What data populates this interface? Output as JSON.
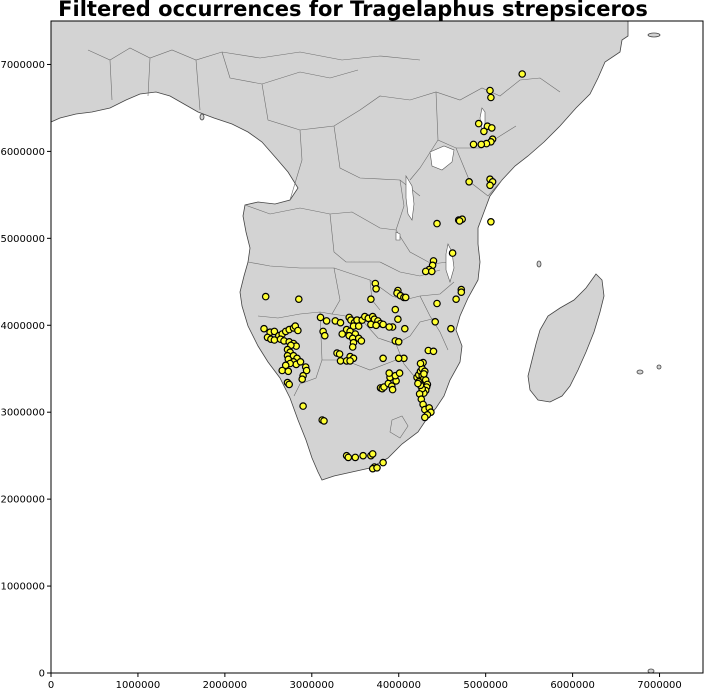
{
  "title": "Filtered occurrences for Tragelaphus strepsiceros",
  "colors": {
    "land": "#d3d3d3",
    "ocean": "#ffffff",
    "marker_fill": "#ffff33",
    "marker_edge": "#000000"
  },
  "chart_data": {
    "type": "scatter",
    "title": "Filtered occurrences for Tragelaphus strepsiceros",
    "xlabel": "",
    "ylabel": "",
    "xlim": [
      0,
      7500000
    ],
    "ylim": [
      0,
      7500000
    ],
    "x_ticks": [
      0,
      1000000,
      2000000,
      3000000,
      4000000,
      5000000,
      6000000,
      7000000
    ],
    "y_ticks": [
      0,
      1000000,
      2000000,
      3000000,
      4000000,
      5000000,
      6000000,
      7000000
    ],
    "x_tick_labels": [
      "0",
      "1000000",
      "2000000",
      "3000000",
      "4000000",
      "5000000",
      "6000000",
      "7000000"
    ],
    "y_tick_labels": [
      "0",
      "1000000",
      "2000000",
      "3000000",
      "4000000",
      "5000000",
      "6000000",
      "7000000"
    ],
    "grid": false,
    "marker": "circle",
    "points": [
      [
        5420000,
        6890000
      ],
      [
        5050000,
        6700000
      ],
      [
        5060000,
        6620000
      ],
      [
        4920000,
        6320000
      ],
      [
        5020000,
        6290000
      ],
      [
        5070000,
        6270000
      ],
      [
        4980000,
        6230000
      ],
      [
        5080000,
        6140000
      ],
      [
        5060000,
        6110000
      ],
      [
        5010000,
        6090000
      ],
      [
        4950000,
        6080000
      ],
      [
        4860000,
        6080000
      ],
      [
        5050000,
        5680000
      ],
      [
        5080000,
        5650000
      ],
      [
        5050000,
        5610000
      ],
      [
        4810000,
        5650000
      ],
      [
        4690000,
        5210000
      ],
      [
        4730000,
        5220000
      ],
      [
        4700000,
        5200000
      ],
      [
        5060000,
        5190000
      ],
      [
        4440000,
        5170000
      ],
      [
        4620000,
        4830000
      ],
      [
        4400000,
        4740000
      ],
      [
        4390000,
        4690000
      ],
      [
        4350000,
        4640000
      ],
      [
        4310000,
        4620000
      ],
      [
        4380000,
        4620000
      ],
      [
        4720000,
        4410000
      ],
      [
        4720000,
        4380000
      ],
      [
        4660000,
        4300000
      ],
      [
        4440000,
        4250000
      ],
      [
        4600000,
        3960000
      ],
      [
        4420000,
        4040000
      ],
      [
        4340000,
        3710000
      ],
      [
        4400000,
        3700000
      ],
      [
        3730000,
        4480000
      ],
      [
        3740000,
        4420000
      ],
      [
        3990000,
        4400000
      ],
      [
        3980000,
        4370000
      ],
      [
        4020000,
        4340000
      ],
      [
        4060000,
        4320000
      ],
      [
        4080000,
        4320000
      ],
      [
        3680000,
        4300000
      ],
      [
        2470000,
        4330000
      ],
      [
        2850000,
        4300000
      ],
      [
        3100000,
        4090000
      ],
      [
        3170000,
        4050000
      ],
      [
        3270000,
        4050000
      ],
      [
        3330000,
        4030000
      ],
      [
        3430000,
        4090000
      ],
      [
        3450000,
        4060000
      ],
      [
        3490000,
        4030000
      ],
      [
        3520000,
        4060000
      ],
      [
        3580000,
        4060000
      ],
      [
        3610000,
        4100000
      ],
      [
        3650000,
        4080000
      ],
      [
        3700000,
        4100000
      ],
      [
        3720000,
        4070000
      ],
      [
        3760000,
        4050000
      ],
      [
        3790000,
        4020000
      ],
      [
        3820000,
        4010000
      ],
      [
        3680000,
        4010000
      ],
      [
        3740000,
        4000000
      ],
      [
        3480000,
        3990000
      ],
      [
        3540000,
        3990000
      ],
      [
        3400000,
        3950000
      ],
      [
        3440000,
        3930000
      ],
      [
        3500000,
        3900000
      ],
      [
        3130000,
        3930000
      ],
      [
        3150000,
        3880000
      ],
      [
        3350000,
        3900000
      ],
      [
        3430000,
        3880000
      ],
      [
        3470000,
        3850000
      ],
      [
        3540000,
        3850000
      ],
      [
        3570000,
        3820000
      ],
      [
        3480000,
        3800000
      ],
      [
        3470000,
        3750000
      ],
      [
        3290000,
        3680000
      ],
      [
        3320000,
        3670000
      ],
      [
        3440000,
        3640000
      ],
      [
        3480000,
        3620000
      ],
      [
        3330000,
        3590000
      ],
      [
        3400000,
        3590000
      ],
      [
        3440000,
        3590000
      ],
      [
        3930000,
        3980000
      ],
      [
        3890000,
        3980000
      ],
      [
        4070000,
        3960000
      ],
      [
        3960000,
        3820000
      ],
      [
        4000000,
        3810000
      ],
      [
        4060000,
        3620000
      ],
      [
        4000000,
        3620000
      ],
      [
        3820000,
        3620000
      ],
      [
        3960000,
        4180000
      ],
      [
        3990000,
        4070000
      ],
      [
        2450000,
        3960000
      ],
      [
        2520000,
        3920000
      ],
      [
        2570000,
        3930000
      ],
      [
        2620000,
        3880000
      ],
      [
        2660000,
        3900000
      ],
      [
        2700000,
        3930000
      ],
      [
        2740000,
        3950000
      ],
      [
        2790000,
        3970000
      ],
      [
        2810000,
        3990000
      ],
      [
        2840000,
        3940000
      ],
      [
        2490000,
        3860000
      ],
      [
        2530000,
        3840000
      ],
      [
        2570000,
        3830000
      ],
      [
        2640000,
        3840000
      ],
      [
        2680000,
        3820000
      ],
      [
        2740000,
        3810000
      ],
      [
        2790000,
        3790000
      ],
      [
        2820000,
        3760000
      ],
      [
        2760000,
        3770000
      ],
      [
        2720000,
        3720000
      ],
      [
        2750000,
        3690000
      ],
      [
        2720000,
        3650000
      ],
      [
        2730000,
        3610000
      ],
      [
        2790000,
        3650000
      ],
      [
        2830000,
        3620000
      ],
      [
        2790000,
        3580000
      ],
      [
        2820000,
        3550000
      ],
      [
        2870000,
        3580000
      ],
      [
        2750000,
        3560000
      ],
      [
        2700000,
        3540000
      ],
      [
        2660000,
        3480000
      ],
      [
        2730000,
        3470000
      ],
      [
        2930000,
        3520000
      ],
      [
        2940000,
        3480000
      ],
      [
        2900000,
        3420000
      ],
      [
        2890000,
        3380000
      ],
      [
        2720000,
        3340000
      ],
      [
        2740000,
        3320000
      ],
      [
        2900000,
        3070000
      ],
      [
        3120000,
        2910000
      ],
      [
        3140000,
        2900000
      ],
      [
        3790000,
        3280000
      ],
      [
        3810000,
        3270000
      ],
      [
        3830000,
        3290000
      ],
      [
        3880000,
        3330000
      ],
      [
        3920000,
        3300000
      ],
      [
        3930000,
        3260000
      ],
      [
        3900000,
        3400000
      ],
      [
        3970000,
        3360000
      ],
      [
        3960000,
        3420000
      ],
      [
        4010000,
        3450000
      ],
      [
        3890000,
        3450000
      ],
      [
        4210000,
        3400000
      ],
      [
        4230000,
        3430000
      ],
      [
        4250000,
        3470000
      ],
      [
        4270000,
        3500000
      ],
      [
        4280000,
        3570000
      ],
      [
        4250000,
        3560000
      ],
      [
        4270000,
        3420000
      ],
      [
        4290000,
        3390000
      ],
      [
        4310000,
        3370000
      ],
      [
        4330000,
        3320000
      ],
      [
        4320000,
        3290000
      ],
      [
        4310000,
        3250000
      ],
      [
        4290000,
        3220000
      ],
      [
        4270000,
        3270000
      ],
      [
        4250000,
        3310000
      ],
      [
        4230000,
        3350000
      ],
      [
        4240000,
        3210000
      ],
      [
        4260000,
        3150000
      ],
      [
        4280000,
        3090000
      ],
      [
        4300000,
        3030000
      ],
      [
        4350000,
        3050000
      ],
      [
        4370000,
        3000000
      ],
      [
        4330000,
        2970000
      ],
      [
        4300000,
        2940000
      ],
      [
        4220000,
        3330000
      ],
      [
        4300000,
        3470000
      ],
      [
        4290000,
        3440000
      ],
      [
        3400000,
        2500000
      ],
      [
        3420000,
        2480000
      ],
      [
        3500000,
        2480000
      ],
      [
        3590000,
        2500000
      ],
      [
        3680000,
        2500000
      ],
      [
        3700000,
        2520000
      ],
      [
        3720000,
        2370000
      ],
      [
        3700000,
        2350000
      ],
      [
        3750000,
        2360000
      ],
      [
        3820000,
        2420000
      ]
    ]
  }
}
